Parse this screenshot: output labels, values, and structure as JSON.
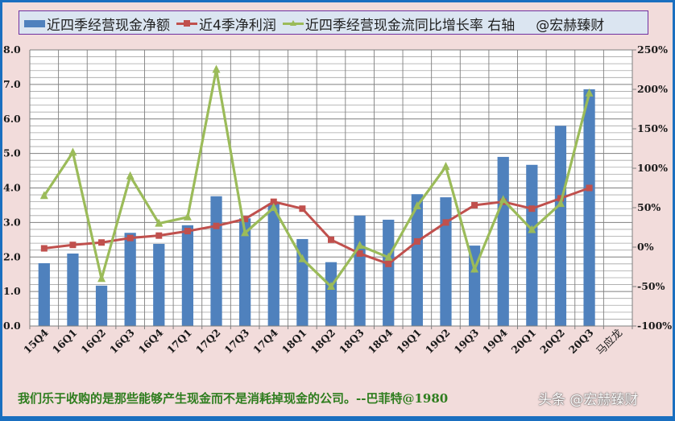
{
  "legend": {
    "series1": "近四季经营现金净额",
    "series2": "近4季净利润",
    "series3": "近四季经营现金流同比增长率 右轴",
    "credit": "@宏赫臻财"
  },
  "footer": {
    "quote": "我们乐于收购的是那些能够产生现金而不是消耗掉现金的公司。--巴菲特@1980",
    "watermark": "头条 @宏赫臻财"
  },
  "colors": {
    "bar": "#4f81bd",
    "net_profit": "#c0504d",
    "growth": "#9bbb59",
    "background": "#f2dcdb",
    "plot_background": "#ffffff",
    "frame": "#1a6fc0",
    "quote": "#2e7d1e"
  },
  "chart_data": {
    "type": "bar",
    "title": "",
    "xlabel": "",
    "ylabel": "",
    "categories": [
      "15Q4",
      "16Q1",
      "16Q2",
      "16Q3",
      "16Q4",
      "17Q1",
      "17Q2",
      "17Q3",
      "17Q4",
      "18Q1",
      "18Q2",
      "18Q3",
      "18Q4",
      "19Q1",
      "19Q2",
      "19Q3",
      "19Q4",
      "20Q1",
      "20Q2",
      "20Q3",
      "马应龙"
    ],
    "series": [
      {
        "name": "近四季经营现金净额",
        "type": "bar",
        "axis": "left",
        "values": [
          1.82,
          2.1,
          1.17,
          2.7,
          2.38,
          2.92,
          3.76,
          3.12,
          3.55,
          2.52,
          1.85,
          3.2,
          3.08,
          3.82,
          3.73,
          2.33,
          4.9,
          4.67,
          5.8,
          6.86,
          null
        ]
      },
      {
        "name": "近4季净利润",
        "type": "line",
        "axis": "left",
        "values": [
          2.25,
          2.35,
          2.42,
          2.55,
          2.62,
          2.75,
          2.9,
          3.1,
          3.6,
          3.4,
          2.5,
          2.1,
          1.8,
          2.45,
          3.0,
          3.5,
          3.6,
          3.4,
          3.7,
          4.0,
          null
        ]
      },
      {
        "name": "近四季经营现金流同比增长率 右轴",
        "type": "line",
        "axis": "right",
        "unit": "%",
        "values": [
          65,
          120,
          -40,
          90,
          30,
          38,
          225,
          18,
          50,
          -15,
          -50,
          2,
          -13,
          52,
          102,
          -28,
          60,
          22,
          55,
          195,
          null
        ]
      }
    ],
    "ylim": [
      0,
      8
    ],
    "yticks": [
      "0.0",
      "1.0",
      "2.0",
      "3.0",
      "4.0",
      "5.0",
      "6.0",
      "7.0",
      "8.0"
    ],
    "y2lim": [
      -100,
      250
    ],
    "y2ticks": [
      "-100%",
      "-50%",
      "0%",
      "50%",
      "100%",
      "150%",
      "200%",
      "250%"
    ],
    "grid": true,
    "legend_position": "top"
  }
}
